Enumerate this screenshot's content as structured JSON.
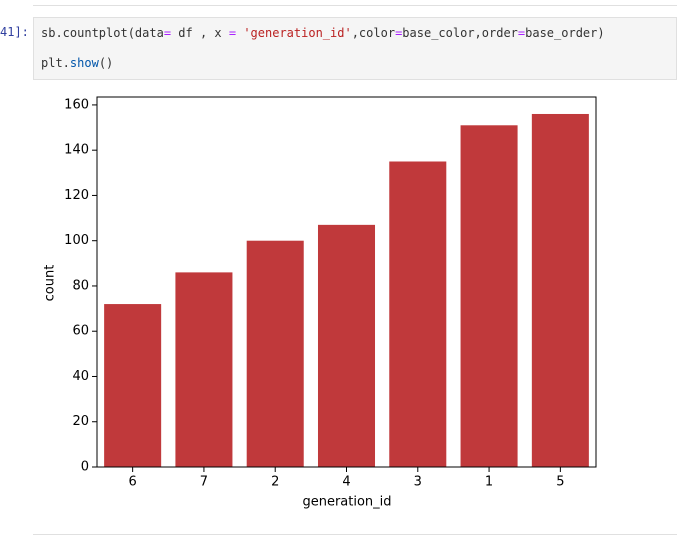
{
  "cell": {
    "prompt": "41]:",
    "lines": [
      [
        {
          "text": "sb.countplot(data",
          "color": "#333333"
        },
        {
          "text": "=",
          "color": "#aa22ff"
        },
        {
          "text": " df , x ",
          "color": "#333333"
        },
        {
          "text": "=",
          "color": "#aa22ff"
        },
        {
          "text": " ",
          "color": "#333333"
        },
        {
          "text": "'generation_id'",
          "color": "#ba2121"
        },
        {
          "text": ",color",
          "color": "#333333"
        },
        {
          "text": "=",
          "color": "#aa22ff"
        },
        {
          "text": "base_color,order",
          "color": "#333333"
        },
        {
          "text": "=",
          "color": "#aa22ff"
        },
        {
          "text": "base_order)",
          "color": "#333333"
        }
      ],
      [
        {
          "text": "plt.",
          "color": "#333333"
        },
        {
          "text": "show",
          "color": "#0055aa"
        },
        {
          "text": "()",
          "color": "#333333"
        }
      ]
    ]
  },
  "chart_data": {
    "type": "bar",
    "x_label": "generation_id",
    "y_label": "count",
    "categories": [
      "6",
      "7",
      "2",
      "4",
      "3",
      "1",
      "5"
    ],
    "values": [
      72,
      86,
      100,
      107,
      135,
      151,
      156
    ],
    "color": "#c0393b",
    "ylim": [
      0,
      163.5
    ],
    "yticks": [
      0,
      20,
      40,
      60,
      80,
      100,
      120,
      140,
      160
    ]
  }
}
